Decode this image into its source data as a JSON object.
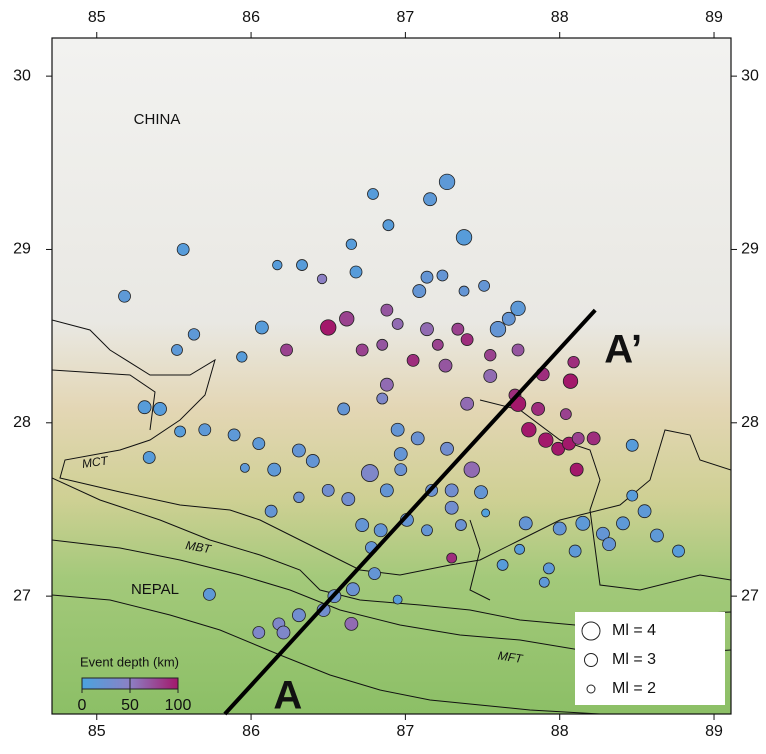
{
  "chart_data": {
    "type": "scatter",
    "xlim": [
      84.71,
      89.11
    ],
    "ylim": [
      26.32,
      30.22
    ],
    "xticks": [
      85,
      86,
      87,
      88,
      89
    ],
    "yticks": [
      27,
      28,
      29,
      30
    ],
    "x": [
      85.18,
      85.56,
      86.79,
      87.27,
      87.16,
      87.38,
      86.89,
      86.65,
      86.17,
      86.33,
      86.68,
      86.46,
      87.14,
      87.24,
      87.51,
      87.38,
      87.09,
      87.73,
      86.5,
      86.62,
      86.88,
      86.95,
      87.14,
      87.34,
      87.21,
      87.4,
      87.6,
      87.67,
      86.07,
      86.23,
      85.63,
      85.52,
      85.94,
      86.72,
      86.85,
      87.05,
      87.26,
      87.55,
      87.73,
      87.89,
      88.07,
      88.09,
      87.55,
      87.71,
      86.88,
      86.85,
      87.4,
      87.73,
      87.86,
      87.8,
      87.91,
      87.99,
      88.06,
      88.12,
      88.11,
      88.22,
      88.04,
      85.41,
      85.31,
      85.54,
      85.7,
      85.89,
      86.05,
      85.34,
      85.96,
      86.15,
      86.31,
      86.4,
      86.6,
      86.77,
      86.63,
      86.5,
      86.31,
      86.13,
      86.95,
      87.08,
      87.27,
      87.43,
      86.97,
      86.97,
      86.88,
      87.01,
      87.17,
      87.3,
      87.49,
      87.3,
      87.36,
      87.14,
      86.84,
      86.72,
      86.78,
      87.3,
      87.52,
      87.78,
      88.0,
      88.15,
      88.28,
      88.41,
      88.47,
      88.55,
      88.63,
      88.77,
      88.47,
      88.32,
      88.1,
      87.93,
      87.9,
      87.74,
      87.63,
      86.8,
      86.66,
      86.54,
      86.47,
      86.31,
      86.18,
      86.05,
      86.21,
      86.65,
      85.73,
      86.95
    ],
    "y": [
      28.73,
      29.0,
      29.32,
      29.39,
      29.29,
      29.07,
      29.14,
      29.03,
      28.91,
      28.91,
      28.87,
      28.83,
      28.84,
      28.85,
      28.79,
      28.76,
      28.76,
      28.66,
      28.55,
      28.6,
      28.65,
      28.57,
      28.54,
      28.54,
      28.45,
      28.48,
      28.54,
      28.6,
      28.55,
      28.42,
      28.51,
      28.42,
      28.38,
      28.42,
      28.45,
      28.36,
      28.33,
      28.39,
      28.42,
      28.28,
      28.24,
      28.35,
      28.27,
      28.16,
      28.22,
      28.14,
      28.11,
      28.11,
      28.08,
      27.96,
      27.9,
      27.85,
      27.88,
      27.91,
      27.73,
      27.91,
      28.05,
      28.08,
      28.09,
      27.95,
      27.96,
      27.93,
      27.88,
      27.8,
      27.74,
      27.73,
      27.84,
      27.78,
      28.08,
      27.71,
      27.56,
      27.61,
      27.57,
      27.49,
      27.96,
      27.91,
      27.85,
      27.73,
      27.82,
      27.73,
      27.61,
      27.44,
      27.61,
      27.61,
      27.6,
      27.51,
      27.41,
      27.38,
      27.38,
      27.41,
      27.28,
      27.22,
      27.48,
      27.42,
      27.39,
      27.42,
      27.36,
      27.42,
      27.58,
      27.49,
      27.35,
      27.26,
      27.87,
      27.3,
      27.26,
      27.16,
      27.08,
      27.27,
      27.18,
      27.13,
      27.04,
      27.0,
      26.92,
      26.89,
      26.84,
      26.79,
      26.79,
      26.84,
      27.01,
      26.98
    ],
    "depth": [
      15,
      10,
      10,
      15,
      15,
      10,
      10,
      10,
      10,
      10,
      10,
      50,
      20,
      20,
      20,
      20,
      20,
      15,
      100,
      80,
      70,
      60,
      60,
      80,
      80,
      90,
      20,
      20,
      10,
      80,
      15,
      15,
      10,
      80,
      70,
      90,
      70,
      80,
      70,
      90,
      100,
      90,
      60,
      90,
      60,
      40,
      60,
      100,
      90,
      100,
      100,
      100,
      100,
      80,
      100,
      90,
      80,
      10,
      10,
      10,
      15,
      15,
      15,
      10,
      15,
      15,
      20,
      20,
      20,
      40,
      30,
      30,
      25,
      20,
      20,
      25,
      30,
      60,
      20,
      25,
      20,
      20,
      25,
      30,
      20,
      30,
      25,
      20,
      20,
      20,
      20,
      90,
      5,
      20,
      20,
      15,
      20,
      15,
      10,
      15,
      15,
      10,
      10,
      20,
      15,
      15,
      15,
      10,
      10,
      20,
      25,
      25,
      30,
      30,
      40,
      40,
      40,
      60,
      15,
      10
    ],
    "magnitude": [
      2.8,
      2.8,
      2.6,
      3.5,
      3,
      3.5,
      2.6,
      2.5,
      2.3,
      2.6,
      2.8,
      2.3,
      2.8,
      2.6,
      2.6,
      2.4,
      3,
      3.3,
      3.5,
      3.3,
      2.8,
      2.6,
      3,
      2.8,
      2.6,
      2.8,
      3.5,
      3,
      3,
      2.8,
      2.7,
      2.6,
      2.5,
      2.8,
      2.6,
      2.8,
      3,
      2.7,
      2.8,
      3,
      3.3,
      2.7,
      3,
      2.8,
      3,
      2.6,
      3,
      3.5,
      3,
      3.3,
      3.3,
      3,
      3,
      2.8,
      3,
      3,
      2.6,
      3,
      3,
      2.6,
      2.8,
      2.8,
      2.8,
      2.8,
      2.2,
      3,
      3,
      3,
      2.8,
      3.8,
      3,
      2.8,
      2.5,
      2.8,
      3,
      3,
      3,
      3.5,
      3,
      2.8,
      3,
      3,
      2.8,
      3,
      3,
      3,
      2.6,
      2.6,
      3,
      3,
      2.8,
      2.4,
      2,
      3,
      3,
      3.2,
      3,
      3,
      2.6,
      3,
      3,
      2.8,
      2.8,
      3,
      2.8,
      2.6,
      2.4,
      2.4,
      2.6,
      2.8,
      3,
      3,
      3,
      3,
      2.8,
      2.8,
      3,
      3,
      2.8,
      2.2
    ],
    "colormap": [
      "#4aa3df",
      "#8c80c4",
      "#a3186b"
    ],
    "colorbar_label": "Event depth (km)",
    "colorbar_ticks": [
      0,
      50,
      100
    ],
    "size_legend": [
      {
        "value": 4,
        "label": "Ml = 4"
      },
      {
        "value": 3,
        "label": "Ml = 3"
      },
      {
        "value": 2,
        "label": "Ml = 2"
      }
    ],
    "profile": {
      "start": [
        85.83,
        26.32
      ],
      "end": [
        88.23,
        28.65
      ],
      "start_label": "A",
      "end_label": "A’"
    },
    "place_labels": [
      "CHINA",
      "NEPAL"
    ],
    "fault_labels": [
      "MCT",
      "MBT",
      "MFT"
    ]
  }
}
